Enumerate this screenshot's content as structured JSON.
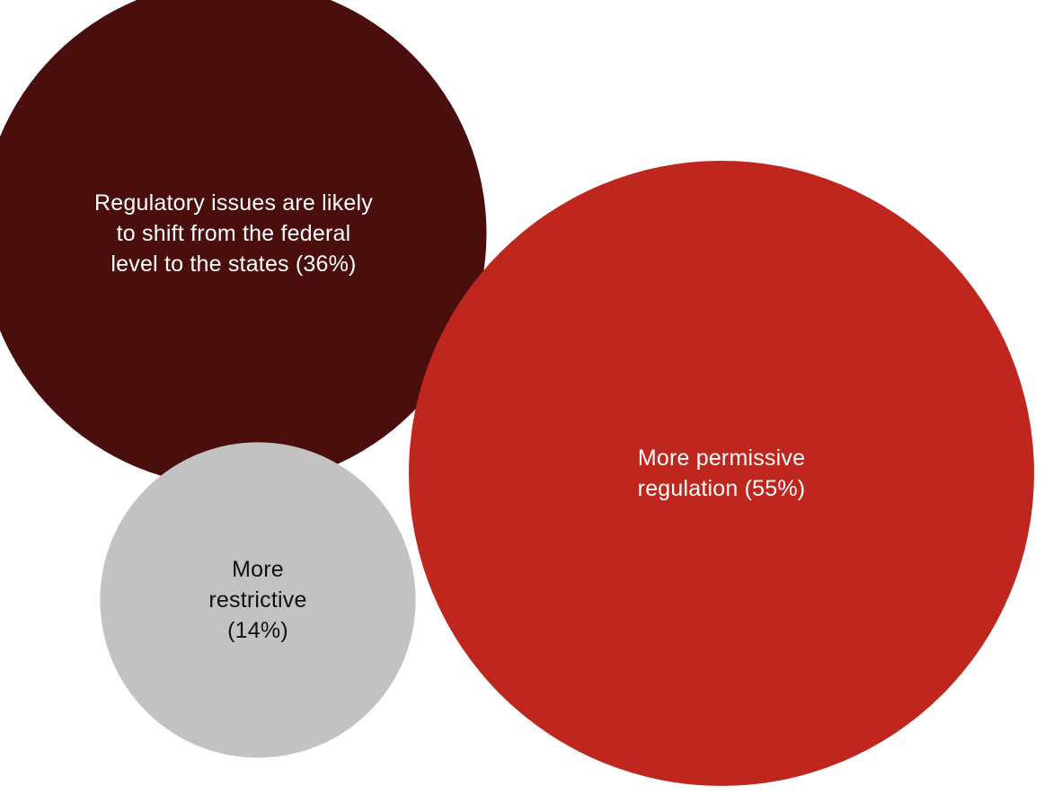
{
  "chart_data": {
    "type": "bubble",
    "title": "",
    "series": [
      {
        "label": "Regulatory issues are likely to shift from the federal level to the states (36%)",
        "value": 36,
        "color": "#4A0E0D",
        "text_color": "#FFFFFF"
      },
      {
        "label": "More permissive regulation (55%)",
        "value": 55,
        "color": "#BE261E",
        "text_color": "#FFFFFF"
      },
      {
        "label": "More restrictive (14%)",
        "value": 14,
        "color": "#C2C2C2",
        "text_color": "#111111"
      }
    ]
  }
}
